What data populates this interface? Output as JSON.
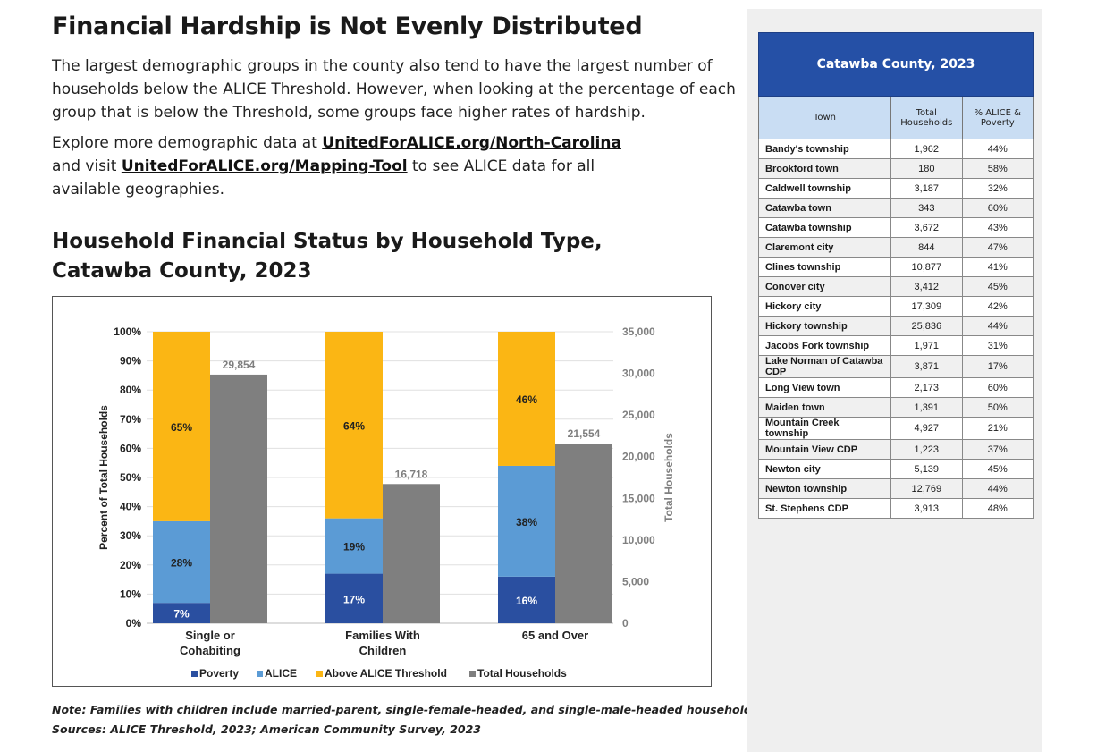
{
  "heading": "Financial Hardship is Not Evenly Distributed",
  "intro": "The largest demographic groups in the county also tend to have the largest number of households below the ALICE Threshold. However, when looking at the percentage of each group that is below the Threshold, some groups face higher rates of hardship.",
  "explore": {
    "pre": "Explore more demographic data at ",
    "link1": "UnitedForALICE.org/North-Carolina",
    "mid": " and visit ",
    "link2": "UnitedForALICE.org/Mapping-Tool",
    "post": " to see ALICE data for all available geographies."
  },
  "chart_title_line1": "Household Financial Status by Household Type,",
  "chart_title_line2": "Catawba County, 2023",
  "chart_data": {
    "type": "bar",
    "stacked": true,
    "categories": [
      "Single or Cohabiting",
      "Families With Children",
      "65 and Over"
    ],
    "category_lines": [
      [
        "Single or",
        "Cohabiting"
      ],
      [
        "Families With",
        "Children"
      ],
      [
        "65 and Over"
      ]
    ],
    "ylabel": "Percent of Total Households",
    "ylabel_right": "Total Households",
    "ylim": [
      0,
      100
    ],
    "ylim_right": [
      0,
      35000
    ],
    "yticks": [
      "0%",
      "10%",
      "20%",
      "30%",
      "40%",
      "50%",
      "60%",
      "70%",
      "80%",
      "90%",
      "100%"
    ],
    "yticks_right": [
      "0",
      "5,000",
      "10,000",
      "15,000",
      "20,000",
      "25,000",
      "30,000",
      "35,000"
    ],
    "grid": true,
    "legend_position": "bottom",
    "series": [
      {
        "name": "Poverty",
        "color": "#2a4fa0",
        "values": [
          7,
          17,
          16
        ],
        "labels": [
          "7%",
          "17%",
          "16%"
        ]
      },
      {
        "name": "ALICE",
        "color": "#5b9bd5",
        "values": [
          28,
          19,
          38
        ],
        "labels": [
          "28%",
          "19%",
          "38%"
        ]
      },
      {
        "name": "Above ALICE Threshold",
        "color": "#fbb614",
        "values": [
          65,
          64,
          46
        ],
        "labels": [
          "65%",
          "64%",
          "46%"
        ]
      },
      {
        "name": "Total Households",
        "color": "#7f7f7f",
        "axis": "right",
        "values": [
          29854,
          16718,
          21554
        ],
        "labels": [
          "29,854",
          "16,718",
          "21,554"
        ]
      }
    ]
  },
  "note": "Note: Families with children include married-parent, single-female-headed, and single-male-headed households.",
  "sources": "Sources: ALICE Threshold, 2023; American Community Survey, 2023",
  "table": {
    "title": "Catawba County, 2023",
    "headers": [
      "Town",
      "Total Households",
      "% ALICE & Poverty"
    ],
    "rows": [
      [
        "Bandy's township",
        "1,962",
        "44%"
      ],
      [
        "Brookford town",
        "180",
        "58%"
      ],
      [
        "Caldwell township",
        "3,187",
        "32%"
      ],
      [
        "Catawba town",
        "343",
        "60%"
      ],
      [
        "Catawba township",
        "3,672",
        "43%"
      ],
      [
        "Claremont city",
        "844",
        "47%"
      ],
      [
        "Clines township",
        "10,877",
        "41%"
      ],
      [
        "Conover city",
        "3,412",
        "45%"
      ],
      [
        "Hickory city",
        "17,309",
        "42%"
      ],
      [
        "Hickory township",
        "25,836",
        "44%"
      ],
      [
        "Jacobs Fork township",
        "1,971",
        "31%"
      ],
      [
        "Lake Norman of Catawba CDP",
        "3,871",
        "17%"
      ],
      [
        "Long View town",
        "2,173",
        "60%"
      ],
      [
        "Maiden town",
        "1,391",
        "50%"
      ],
      [
        "Mountain Creek township",
        "4,927",
        "21%"
      ],
      [
        "Mountain View CDP",
        "1,223",
        "37%"
      ],
      [
        "Newton city",
        "5,139",
        "45%"
      ],
      [
        "Newton township",
        "12,769",
        "44%"
      ],
      [
        "St. Stephens CDP",
        "3,913",
        "48%"
      ]
    ]
  }
}
